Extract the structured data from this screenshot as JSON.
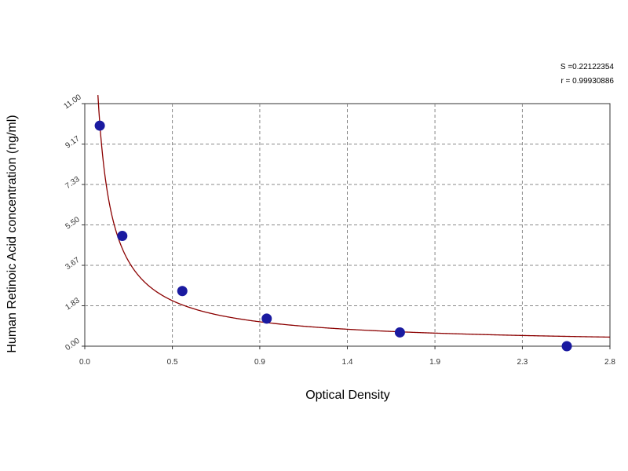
{
  "chart_data": {
    "type": "scatter",
    "title": "",
    "xlabel": "Optical Density",
    "ylabel": "Human Retinoic Acid concentration (ng/ml)",
    "xlim": [
      0.0,
      2.8
    ],
    "ylim": [
      0.0,
      11.0
    ],
    "x_ticks": [
      "0.0",
      "0.5",
      "0.9",
      "1.4",
      "1.9",
      "2.3",
      "2.8"
    ],
    "x_tick_values": [
      0.0,
      0.467,
      0.933,
      1.4,
      1.867,
      2.333,
      2.8
    ],
    "y_ticks": [
      "0.00",
      "1.83",
      "3.67",
      "5.50",
      "7.33",
      "9.17",
      "11.00"
    ],
    "y_tick_values": [
      0.0,
      1.833,
      3.667,
      5.5,
      7.333,
      9.167,
      11.0
    ],
    "grid": true,
    "point_color": "#1a1aa0",
    "curve_color": "#8b0000",
    "points": [
      {
        "x": 0.08,
        "y": 10.0
      },
      {
        "x": 0.2,
        "y": 5.0
      },
      {
        "x": 0.52,
        "y": 2.5
      },
      {
        "x": 0.97,
        "y": 1.25
      },
      {
        "x": 1.68,
        "y": 0.625
      },
      {
        "x": 2.57,
        "y": 0.0
      }
    ],
    "fit": {
      "type": "power",
      "description": "fitted curve",
      "a": 1.04,
      "b": -0.9
    },
    "stats": {
      "s_label": "S =0.22122354",
      "r_label": "r = 0.99930886"
    }
  }
}
